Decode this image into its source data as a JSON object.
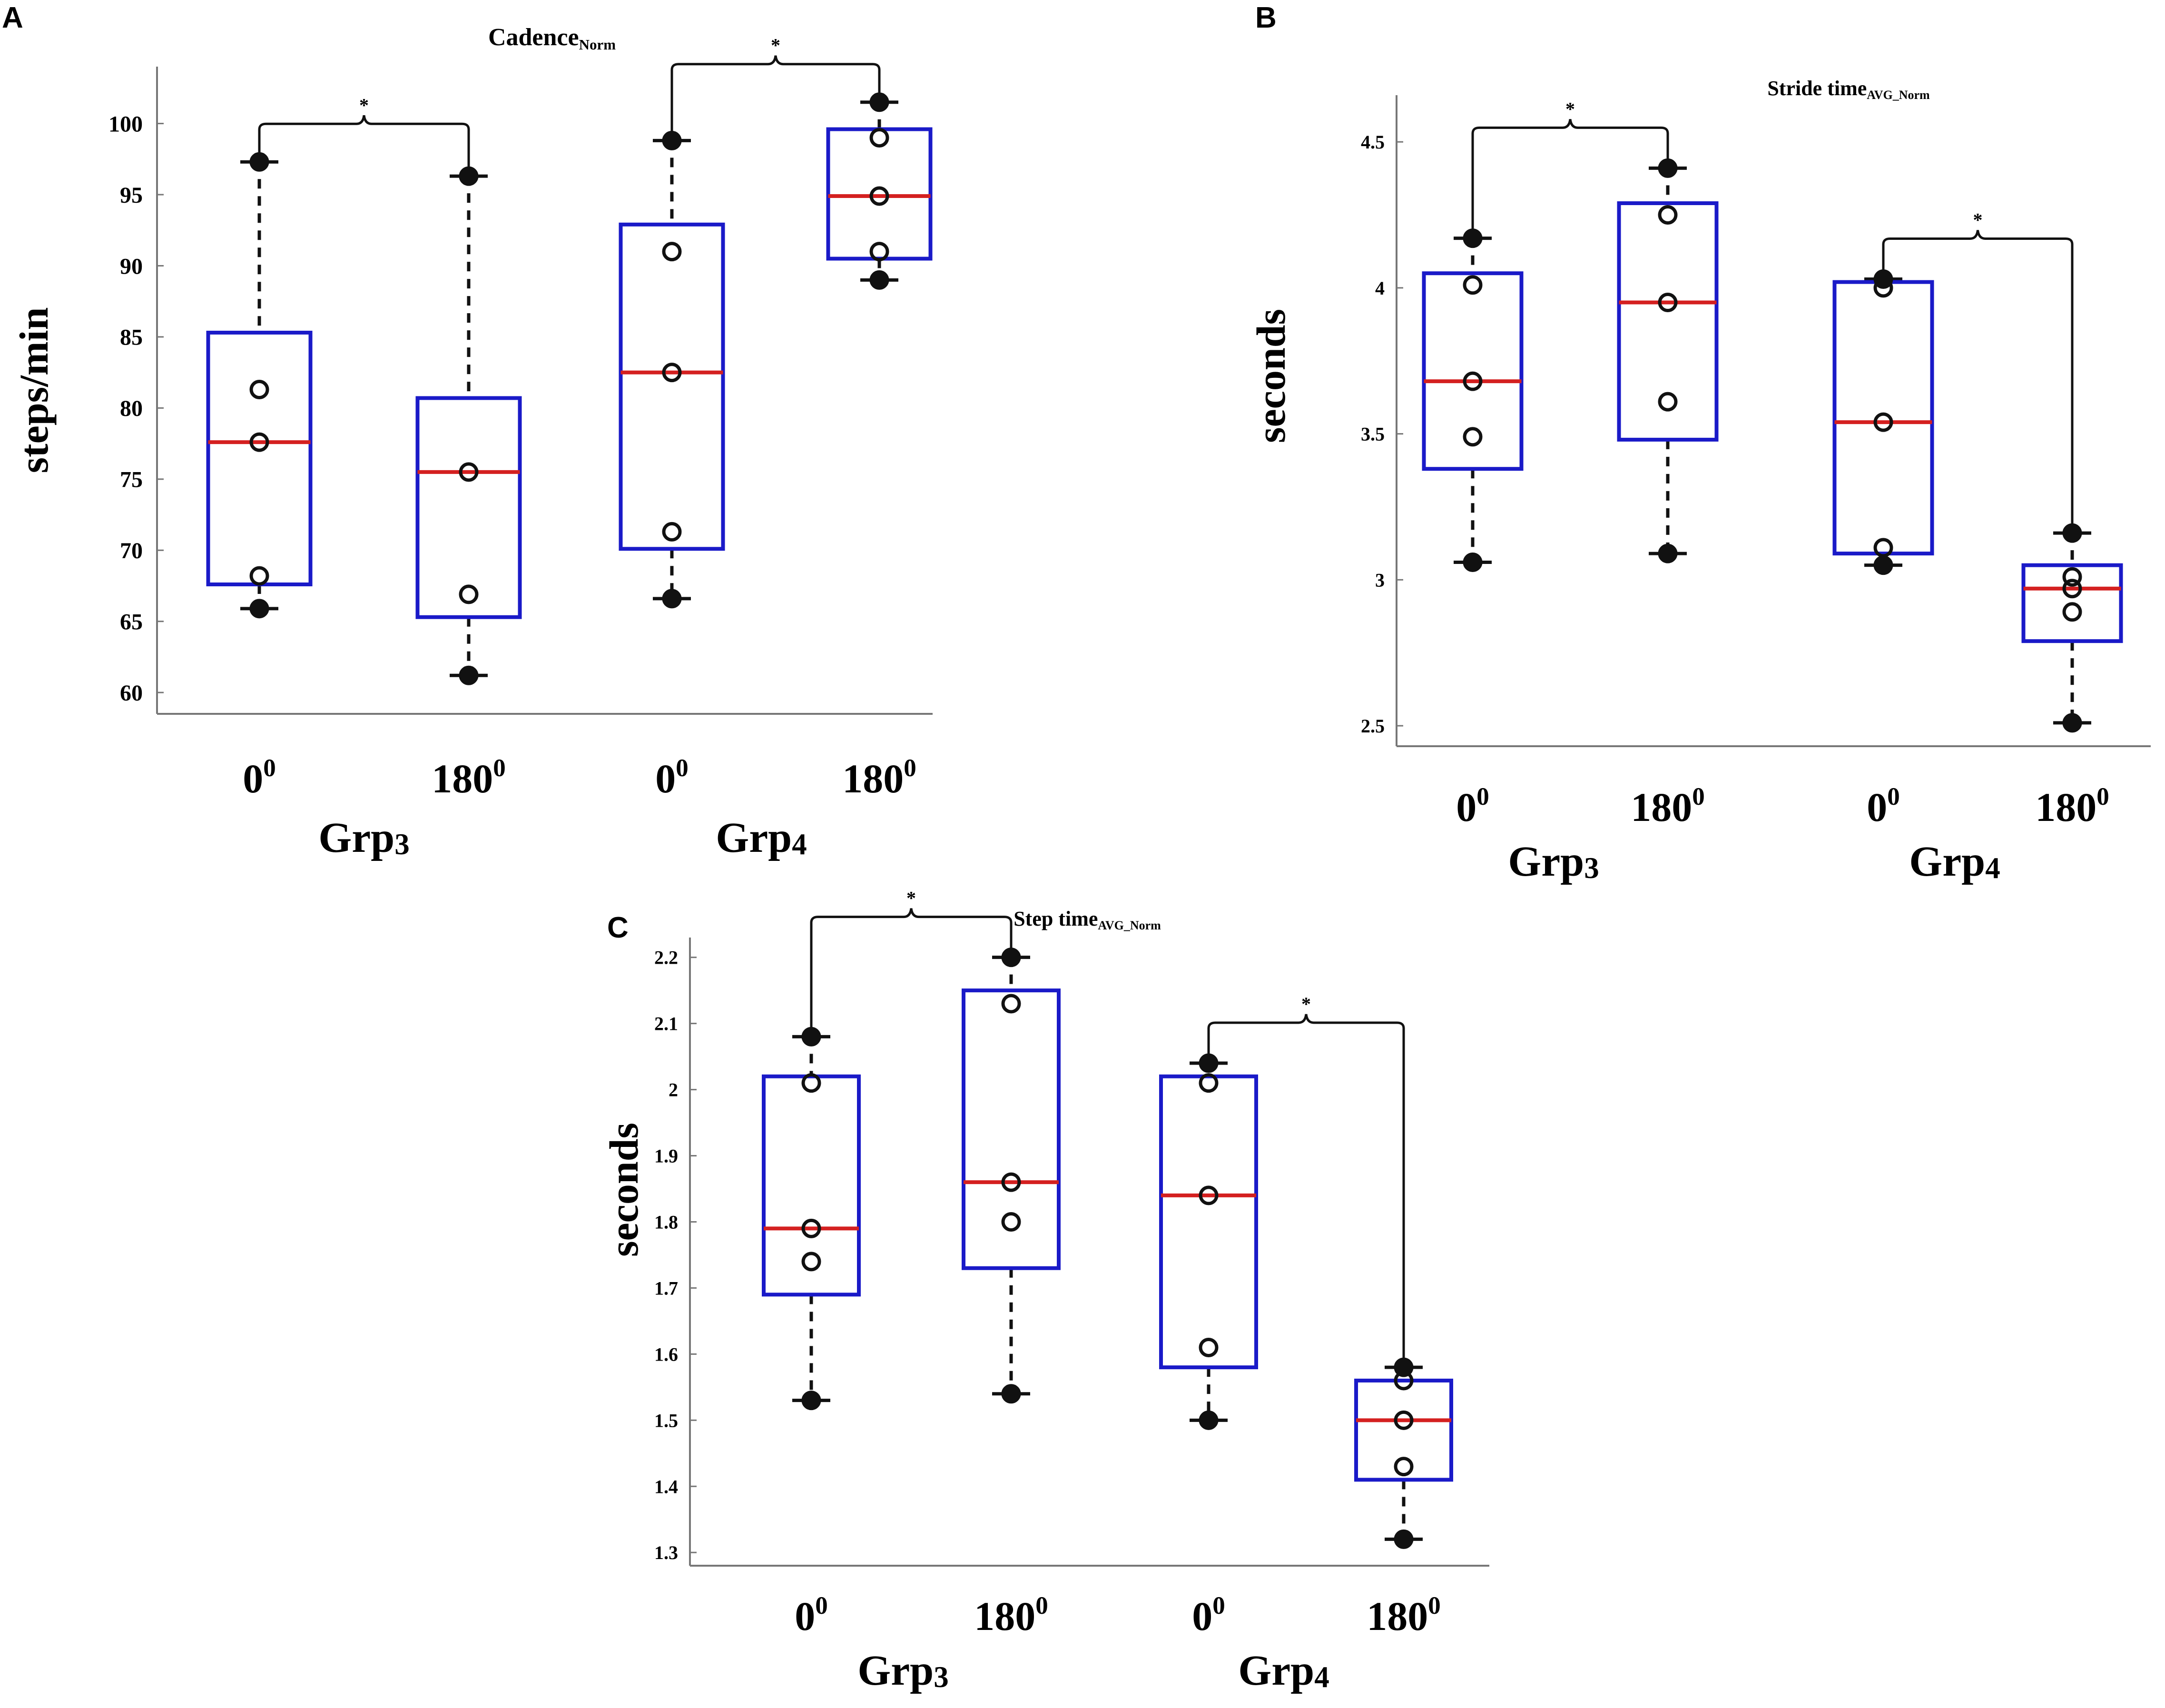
{
  "chart_data": [
    {
      "panel": "A",
      "type": "box",
      "title": "Cadence",
      "title_sub": "Norm",
      "ylabel": "steps/min",
      "ylim": [
        58.5,
        104
      ],
      "yticks": [
        60,
        65,
        70,
        75,
        80,
        85,
        90,
        95,
        100
      ],
      "groups": [
        {
          "label": "Grp",
          "sub": "3"
        },
        {
          "label": "Grp",
          "sub": "4"
        }
      ],
      "boxes": [
        {
          "group": 0,
          "label": "0",
          "sup": "0",
          "q1": 67.6,
          "median": 77.6,
          "q3": 85.3,
          "whisker_low": 65.9,
          "whisker_high": 97.3,
          "points": [
            65.9,
            68.2,
            77.6,
            81.3,
            97.3
          ]
        },
        {
          "group": 0,
          "label": "180",
          "sup": "0",
          "q1": 65.3,
          "median": 75.5,
          "q3": 80.7,
          "whisker_low": 61.2,
          "whisker_high": 96.3,
          "points": [
            61.2,
            66.9,
            75.5,
            96.3
          ]
        },
        {
          "group": 1,
          "label": "0",
          "sup": "0",
          "q1": 70.1,
          "median": 82.5,
          "q3": 92.9,
          "whisker_low": 66.6,
          "whisker_high": 98.8,
          "points": [
            66.6,
            71.3,
            82.5,
            91.0,
            98.8
          ]
        },
        {
          "group": 1,
          "label": "180",
          "sup": "0",
          "q1": 90.5,
          "median": 94.9,
          "q3": 99.6,
          "whisker_low": 89.0,
          "whisker_high": 101.5,
          "points": [
            89.0,
            91.0,
            94.9,
            99.0,
            101.5
          ]
        }
      ],
      "brackets": [
        {
          "from": 0,
          "to": 1,
          "label": "*",
          "side": "above"
        },
        {
          "from": 2,
          "to": 3,
          "label": "*",
          "side": "above"
        }
      ]
    },
    {
      "panel": "B",
      "type": "box",
      "title": "Stride time",
      "title_sub": "AVG_Norm",
      "ylabel": "seconds",
      "ylim": [
        2.43,
        4.66
      ],
      "yticks": [
        2.5,
        3,
        3.5,
        4,
        4.5
      ],
      "ytick_labels": [
        "2.5",
        "3",
        "3.5",
        "4",
        "4.5"
      ],
      "groups": [
        {
          "label": "Grp",
          "sub": "3"
        },
        {
          "label": "Grp",
          "sub": "4"
        }
      ],
      "boxes": [
        {
          "group": 0,
          "label": "0",
          "sup": "0",
          "q1": 3.38,
          "median": 3.68,
          "q3": 4.05,
          "whisker_low": 3.06,
          "whisker_high": 4.17,
          "points": [
            3.06,
            3.49,
            3.68,
            4.01,
            4.17
          ]
        },
        {
          "group": 0,
          "label": "180",
          "sup": "0",
          "q1": 3.48,
          "median": 3.95,
          "q3": 4.29,
          "whisker_low": 3.09,
          "whisker_high": 4.41,
          "points": [
            3.09,
            3.61,
            3.95,
            4.25,
            4.41
          ]
        },
        {
          "group": 1,
          "label": "0",
          "sup": "0",
          "q1": 3.09,
          "median": 3.54,
          "q3": 4.02,
          "whisker_low": 3.05,
          "whisker_high": 4.03,
          "points": [
            3.05,
            3.11,
            3.54,
            4.0,
            4.03
          ]
        },
        {
          "group": 1,
          "label": "180",
          "sup": "0",
          "q1": 2.79,
          "median": 2.97,
          "q3": 3.05,
          "whisker_low": 2.51,
          "whisker_high": 3.16,
          "points": [
            2.51,
            2.89,
            2.97,
            3.01,
            3.16
          ]
        }
      ],
      "brackets": [
        {
          "from": 0,
          "to": 1,
          "label": "*",
          "side": "above"
        },
        {
          "from": 2,
          "to": 3,
          "label": "*",
          "side": "above"
        }
      ]
    },
    {
      "panel": "C",
      "type": "box",
      "title": "Step time",
      "title_sub": "AVG_Norm",
      "ylabel": "seconds",
      "ylim": [
        1.28,
        2.23
      ],
      "yticks": [
        1.3,
        1.4,
        1.5,
        1.6,
        1.7,
        1.8,
        1.9,
        2.0,
        2.1,
        2.2
      ],
      "ytick_labels": [
        "1.3",
        "1.4",
        "1.5",
        "1.6",
        "1.7",
        "1.8",
        "1.9",
        "2",
        "2.1",
        "2.2"
      ],
      "groups": [
        {
          "label": "Grp",
          "sub": "3"
        },
        {
          "label": "Grp",
          "sub": "4"
        }
      ],
      "boxes": [
        {
          "group": 0,
          "label": "0",
          "sup": "0",
          "q1": 1.69,
          "median": 1.79,
          "q3": 2.02,
          "whisker_low": 1.53,
          "whisker_high": 2.08,
          "points": [
            1.53,
            1.74,
            1.79,
            2.01,
            2.08
          ]
        },
        {
          "group": 0,
          "label": "180",
          "sup": "0",
          "q1": 1.73,
          "median": 1.86,
          "q3": 2.15,
          "whisker_low": 1.54,
          "whisker_high": 2.2,
          "points": [
            1.54,
            1.8,
            1.86,
            2.13,
            2.2
          ]
        },
        {
          "group": 1,
          "label": "0",
          "sup": "0",
          "q1": 1.58,
          "median": 1.84,
          "q3": 2.02,
          "whisker_low": 1.5,
          "whisker_high": 2.04,
          "points": [
            1.5,
            1.61,
            1.84,
            2.01,
            2.04
          ]
        },
        {
          "group": 1,
          "label": "180",
          "sup": "0",
          "q1": 1.41,
          "median": 1.5,
          "q3": 1.56,
          "whisker_low": 1.32,
          "whisker_high": 1.58,
          "points": [
            1.32,
            1.43,
            1.5,
            1.56,
            1.58
          ]
        }
      ],
      "brackets": [
        {
          "from": 0,
          "to": 1,
          "label": "*",
          "side": "above"
        },
        {
          "from": 2,
          "to": 3,
          "label": "*",
          "side": "above"
        }
      ]
    }
  ],
  "colors": {
    "box": "#1a1ac8",
    "median": "#d42020",
    "whisker": "#111111",
    "point": "#111111"
  }
}
